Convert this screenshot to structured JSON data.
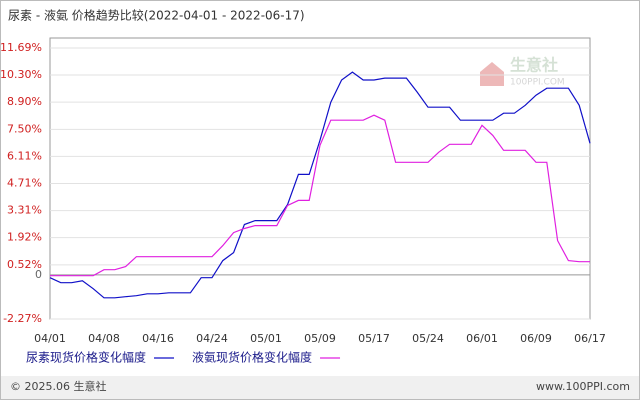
{
  "chart_data": {
    "type": "line",
    "title": "尿素 - 液氨 价格趋势比较(2022-04-01 - 2022-06-17)",
    "categories": [
      "04/01",
      null,
      null,
      null,
      null,
      "04/08",
      null,
      null,
      null,
      null,
      "04/16",
      null,
      null,
      null,
      null,
      "04/24",
      null,
      null,
      null,
      null,
      "05/01",
      null,
      null,
      null,
      null,
      "05/09",
      null,
      null,
      null,
      null,
      "05/17",
      null,
      null,
      null,
      null,
      "05/24",
      null,
      null,
      null,
      null,
      "06/01",
      null,
      null,
      null,
      null,
      "06/09",
      null,
      null,
      null,
      null,
      "06/17"
    ],
    "series": [
      {
        "name": "尿素现货价格变化幅度",
        "color": "#1010c8",
        "values": [
          -0.14,
          -0.4,
          -0.4,
          -0.3,
          -0.71,
          -1.18,
          -1.18,
          -1.12,
          -1.07,
          -0.97,
          -0.97,
          -0.92,
          -0.92,
          -0.92,
          -0.14,
          -0.14,
          0.74,
          1.15,
          2.6,
          2.8,
          2.8,
          2.8,
          3.63,
          5.18,
          5.18,
          6.94,
          8.9,
          10.04,
          10.45,
          10.04,
          10.04,
          10.14,
          10.14,
          10.14,
          9.42,
          8.64,
          8.64,
          8.64,
          7.97,
          7.97,
          7.97,
          7.97,
          8.33,
          8.33,
          8.74,
          9.26,
          9.62,
          9.62,
          9.62,
          8.74,
          6.78
        ]
      },
      {
        "name": "液氨现货价格变化幅度",
        "color": "#e020e0",
        "values": [
          -0.04,
          -0.04,
          -0.04,
          -0.04,
          -0.04,
          0.27,
          0.27,
          0.43,
          0.94,
          0.94,
          0.94,
          0.94,
          0.94,
          0.94,
          0.94,
          0.94,
          1.51,
          2.18,
          2.39,
          2.54,
          2.54,
          2.54,
          3.58,
          3.84,
          3.84,
          6.68,
          7.97,
          7.97,
          7.97,
          7.97,
          8.23,
          7.97,
          5.8,
          5.8,
          5.8,
          5.8,
          6.32,
          6.73,
          6.73,
          6.73,
          7.71,
          7.19,
          6.42,
          6.42,
          6.42,
          5.8,
          5.8,
          1.77,
          0.74,
          0.68,
          0.68
        ]
      }
    ],
    "ylim": [
      -2.27,
      11.69
    ],
    "yticks": [
      {
        "value": -2.27,
        "label": "-2.27%"
      },
      0,
      {
        "value": 0.52,
        "label": "0.52%"
      },
      {
        "value": 1.92,
        "label": "1.92%"
      },
      {
        "value": 3.31,
        "label": "3.31%"
      },
      {
        "value": 4.71,
        "label": "4.71%"
      },
      {
        "value": 6.11,
        "label": "6.11%"
      },
      {
        "value": 7.5,
        "label": "7.50%"
      },
      {
        "value": 8.9,
        "label": "8.90%"
      },
      {
        "value": 10.3,
        "label": "10.30%"
      },
      {
        "value": 11.69,
        "label": "11.69%"
      }
    ],
    "grid": true
  },
  "watermark": {
    "name": "生意社",
    "site": "100PPI.COM"
  },
  "footer": {
    "copyright": "© 2025.06 生意社",
    "site": "www.100PPI.com"
  }
}
